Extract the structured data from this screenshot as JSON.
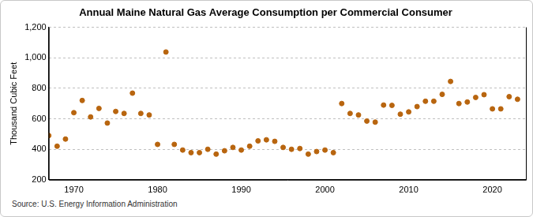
{
  "chart_data": {
    "type": "scatter",
    "title": "Annual Maine Natural Gas Average Consumption per Commercial Consumer",
    "y_label": "Thousand Cubic Feet",
    "source": "Source: U.S. Energy Information Administration",
    "x": [
      1967,
      1968,
      1969,
      1970,
      1971,
      1972,
      1973,
      1974,
      1975,
      1976,
      1977,
      1978,
      1979,
      1980,
      1981,
      1982,
      1983,
      1984,
      1985,
      1986,
      1987,
      1988,
      1989,
      1990,
      1991,
      1992,
      1993,
      1994,
      1995,
      1996,
      1997,
      1998,
      1999,
      2000,
      2001,
      2002,
      2003,
      2004,
      2005,
      2006,
      2007,
      2008,
      2009,
      2010,
      2011,
      2012,
      2013,
      2014,
      2015,
      2016,
      2017,
      2018,
      2019,
      2020,
      2021,
      2022,
      2023
    ],
    "values": [
      490,
      420,
      467,
      640,
      720,
      612,
      668,
      572,
      648,
      635,
      768,
      635,
      625,
      432,
      1038,
      432,
      395,
      378,
      378,
      400,
      368,
      390,
      412,
      395,
      420,
      455,
      462,
      452,
      412,
      400,
      405,
      368,
      385,
      395,
      378,
      700,
      635,
      625,
      585,
      578,
      690,
      688,
      630,
      645,
      680,
      715,
      715,
      760,
      845,
      700,
      710,
      740,
      758,
      665,
      665,
      745,
      728
    ],
    "color": "#b8650f",
    "marker": "circle",
    "xlim": [
      1967,
      2024
    ],
    "xticks": [
      1970,
      1980,
      1990,
      2000,
      2010,
      2020
    ],
    "ylim": [
      200,
      1200
    ],
    "yticks": [
      200,
      400,
      600,
      800,
      {
        "value": 1000,
        "label": "1,000"
      },
      {
        "value": 1200,
        "label": "1,200"
      }
    ],
    "grid": true
  }
}
